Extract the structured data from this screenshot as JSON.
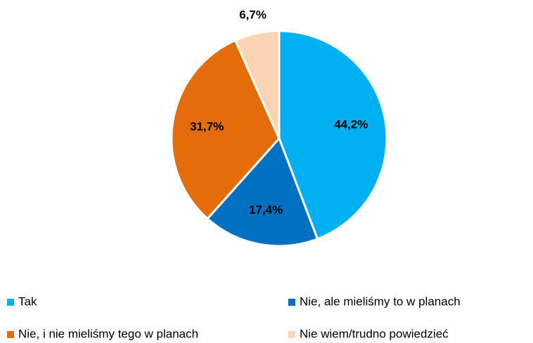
{
  "chart_data": {
    "type": "pie",
    "categories": [
      "Tak",
      "Nie, ale mieliśmy to w planach",
      "Nie, i nie mieliśmy tego w planach",
      "Nie wiem/trudno powiedzieć"
    ],
    "values": [
      44.2,
      17.4,
      31.7,
      6.7
    ],
    "value_labels": [
      "44,2%",
      "17,4%",
      "31,7%",
      "6,7%"
    ],
    "colors": [
      "#00b0f0",
      "#0070c0",
      "#e46c0a",
      "#fbd4b4"
    ]
  }
}
